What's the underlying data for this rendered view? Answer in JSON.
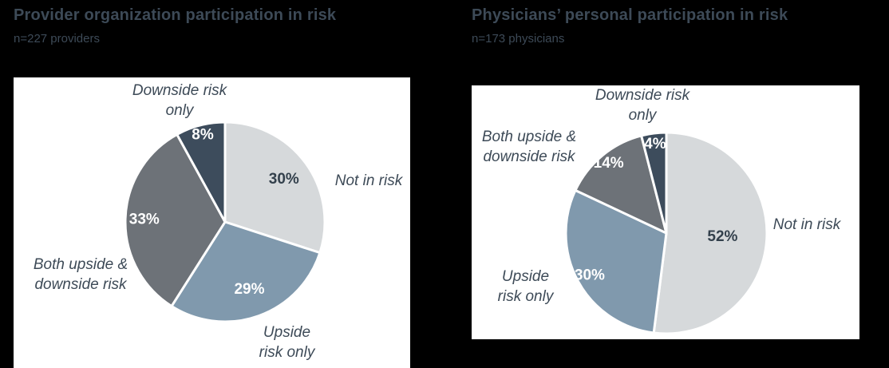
{
  "background_color": "#000000",
  "text_color": "#3d4a57",
  "charts": [
    {
      "title": "Provider organization participation in risk",
      "subtitle": "n=227 providers",
      "chart_data": {
        "type": "pie",
        "categories": [
          "Not in risk",
          "Upside risk only",
          "Both upside & downside risk",
          "Downside risk only"
        ],
        "values": [
          30,
          29,
          33,
          8
        ],
        "unit": "%",
        "start_angle_deg": 0,
        "direction": "clockwise",
        "slice_colors": [
          "#d6d9db",
          "#8099ad",
          "#6d7278",
          "#3d4c5c"
        ],
        "value_label_colors": [
          "#33404c",
          "#ffffff",
          "#ffffff",
          "#ffffff"
        ],
        "label_radius_factors": [
          0.73,
          0.72,
          0.81,
          0.9
        ],
        "display_labels": [
          "Not in risk",
          "Upside\nrisk only",
          "Both upside &\ndownside risk",
          "Downside risk\nonly"
        ]
      }
    },
    {
      "title": "Physicians’ personal participation in risk",
      "subtitle": "n=173 physicians",
      "chart_data": {
        "type": "pie",
        "categories": [
          "Not in risk",
          "Upside risk only",
          "Both upside & downside risk",
          "Downside risk only"
        ],
        "values": [
          52,
          30,
          14,
          4
        ],
        "unit": "%",
        "start_angle_deg": 0,
        "direction": "clockwise",
        "slice_colors": [
          "#d6d9db",
          "#8099ad",
          "#6d7278",
          "#3d4c5c"
        ],
        "value_label_colors": [
          "#33404c",
          "#ffffff",
          "#ffffff",
          "#ffffff"
        ],
        "label_radius_factors": [
          0.56,
          0.87,
          0.9,
          0.89
        ],
        "display_labels": [
          "Not in risk",
          "Upside\nrisk only",
          "Both upside &\ndownside risk",
          "Downside risk\nonly"
        ]
      }
    }
  ]
}
